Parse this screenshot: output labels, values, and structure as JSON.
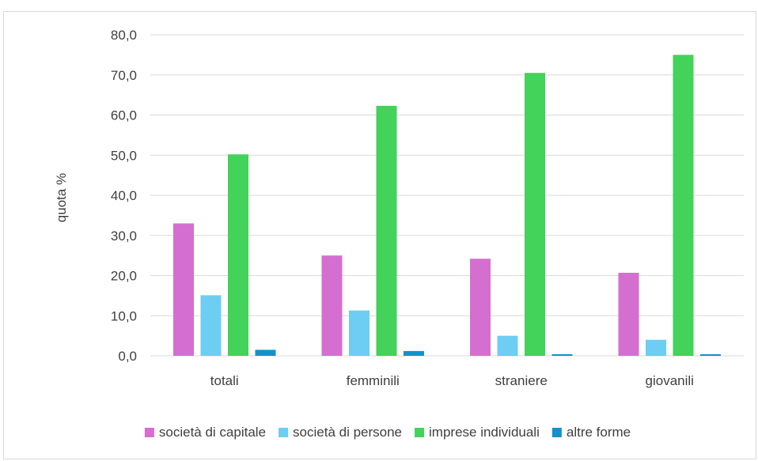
{
  "chart_data": {
    "type": "bar",
    "ylabel": "quota %",
    "ylim": [
      0,
      80
    ],
    "y_ticks": [
      "0,0",
      "10,0",
      "20,0",
      "30,0",
      "40,0",
      "50,0",
      "60,0",
      "70,0",
      "80,0"
    ],
    "y_tick_values": [
      0,
      10,
      20,
      30,
      40,
      50,
      60,
      70,
      80
    ],
    "grid": "horizontal",
    "legend_position": "bottom",
    "categories": [
      "totali",
      "femminili",
      "straniere",
      "giovanili"
    ],
    "series": [
      {
        "name": "società di capitale",
        "color": "#d46fd0",
        "values": [
          33.0,
          25.0,
          24.2,
          20.7
        ]
      },
      {
        "name": "società di persone",
        "color": "#6dcdf2",
        "values": [
          15.1,
          11.3,
          5.0,
          4.0
        ]
      },
      {
        "name": "imprese individuali",
        "color": "#43d25a",
        "values": [
          50.2,
          62.3,
          70.5,
          75.0
        ]
      },
      {
        "name": "altre forme",
        "color": "#1591c9",
        "values": [
          1.5,
          1.2,
          0.4,
          0.4
        ]
      }
    ]
  }
}
